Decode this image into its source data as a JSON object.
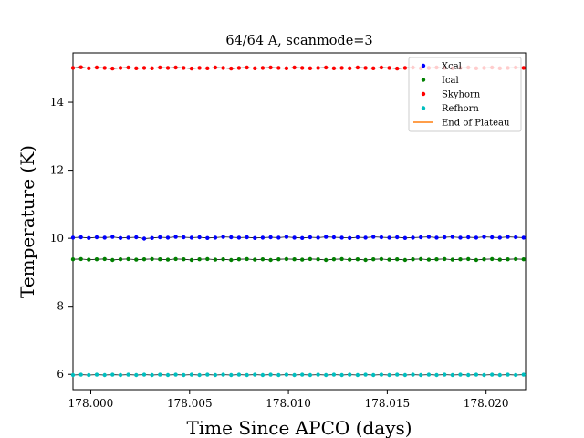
{
  "chart_data": {
    "type": "scatter",
    "title": "64/64 A, scanmode=3",
    "xlabel": "Time Since APCO (days)",
    "ylabel": "Temperature (K)",
    "xlim": [
      177.9991,
      178.022
    ],
    "ylim": [
      5.55,
      15.45
    ],
    "x_ticks": [
      178.0,
      178.005,
      178.01,
      178.015,
      178.02
    ],
    "x_tick_labels": [
      "178.000",
      "178.005",
      "178.010",
      "178.015",
      "178.020"
    ],
    "y_ticks": [
      6,
      8,
      10,
      12,
      14
    ],
    "y_tick_labels": [
      "6",
      "8",
      "10",
      "12",
      "14"
    ],
    "grid": false,
    "legend_position": "top-right",
    "x_start": 177.9991,
    "x_step": 0.0004,
    "series": [
      {
        "name": "Xcal",
        "color": "#0000ff",
        "marker": "point",
        "values": [
          10.02,
          10.03,
          10.01,
          10.03,
          10.02,
          10.04,
          10.01,
          10.02,
          10.03,
          9.99,
          10.01,
          10.03,
          10.02,
          10.04,
          10.03,
          10.02,
          10.03,
          10.01,
          10.02,
          10.04,
          10.03,
          10.02,
          10.03,
          10.01,
          10.02,
          10.03,
          10.02,
          10.04,
          10.02,
          10.01,
          10.03,
          10.02,
          10.04,
          10.03,
          10.02,
          10.01,
          10.03,
          10.02,
          10.04,
          10.03,
          10.02,
          10.03,
          10.01,
          10.02,
          10.03,
          10.04,
          10.02,
          10.03,
          10.04,
          10.02,
          10.03,
          10.02,
          10.04,
          10.03,
          10.02,
          10.04,
          10.03,
          10.02
        ]
      },
      {
        "name": "Ical",
        "color": "#008000",
        "marker": "point",
        "values": [
          9.38,
          9.39,
          9.37,
          9.38,
          9.39,
          9.36,
          9.38,
          9.39,
          9.37,
          9.38,
          9.39,
          9.38,
          9.37,
          9.39,
          9.38,
          9.36,
          9.38,
          9.39,
          9.37,
          9.38,
          9.36,
          9.38,
          9.39,
          9.37,
          9.38,
          9.36,
          9.38,
          9.39,
          9.38,
          9.37,
          9.39,
          9.38,
          9.36,
          9.38,
          9.39,
          9.37,
          9.38,
          9.36,
          9.38,
          9.39,
          9.37,
          9.38,
          9.36,
          9.38,
          9.39,
          9.37,
          9.38,
          9.39,
          9.37,
          9.38,
          9.39,
          9.36,
          9.38,
          9.39,
          9.37,
          9.38,
          9.39,
          9.38
        ]
      },
      {
        "name": "Skyhorn",
        "color": "#ff0000",
        "marker": "point",
        "values": [
          15.01,
          15.03,
          15.0,
          15.02,
          15.01,
          14.99,
          15.01,
          15.02,
          15.0,
          15.01,
          15.0,
          15.02,
          15.01,
          15.02,
          15.01,
          14.99,
          15.01,
          15.0,
          15.02,
          15.01,
          14.99,
          15.01,
          15.02,
          15.0,
          15.01,
          15.02,
          15.01,
          15.0,
          15.02,
          15.01,
          15.0,
          15.01,
          15.02,
          15.0,
          15.01,
          15.0,
          15.02,
          15.01,
          15.0,
          15.02,
          15.01,
          14.99,
          15.01,
          15.02,
          15.0,
          15.01,
          15.02,
          15.01,
          15.0,
          15.01,
          15.02,
          15.0,
          15.01,
          15.02,
          15.0,
          15.01,
          15.02,
          15.01
        ]
      },
      {
        "name": "Refhorn",
        "color": "#00bfbf",
        "marker": "point",
        "values": [
          5.98,
          5.99,
          5.98,
          5.99,
          5.98,
          5.99,
          5.98,
          5.99,
          5.98,
          5.99,
          5.98,
          5.99,
          5.98,
          5.99,
          5.98,
          5.99,
          5.98,
          5.99,
          5.98,
          5.99,
          5.98,
          5.99,
          5.98,
          5.99,
          5.98,
          5.99,
          5.98,
          5.99,
          5.98,
          5.99,
          5.98,
          5.99,
          5.98,
          5.99,
          5.98,
          5.99,
          5.98,
          5.99,
          5.98,
          5.99,
          5.98,
          5.99,
          5.98,
          5.99,
          5.98,
          5.99,
          5.98,
          5.99,
          5.98,
          5.99,
          5.98,
          5.99,
          5.98,
          5.99,
          5.98,
          5.99,
          5.98,
          5.99
        ]
      },
      {
        "name": "End of Plateau",
        "color": "#ff7f0e",
        "marker": "line",
        "values": []
      }
    ]
  }
}
